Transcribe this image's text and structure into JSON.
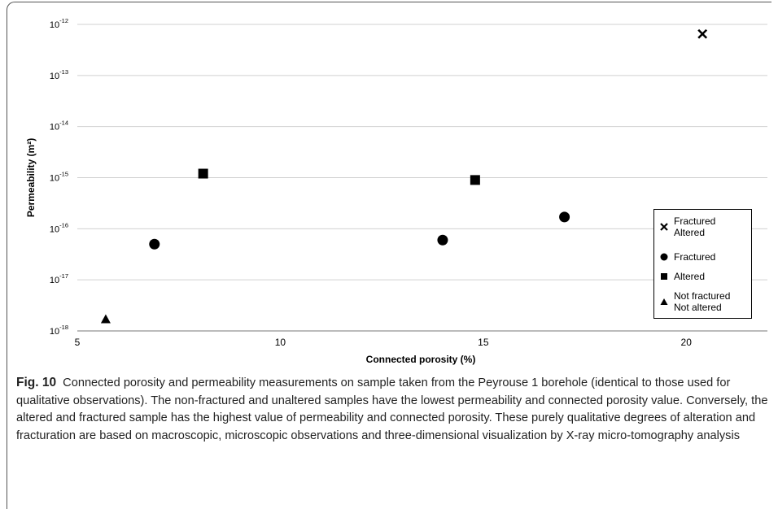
{
  "chart_data": {
    "type": "scatter",
    "xlabel": "Connected porosity (%)",
    "ylabel": "Permeability (m²)",
    "xlim": [
      5,
      22
    ],
    "ylim_log10": [
      -18,
      -12
    ],
    "y_scale": "log",
    "x_ticks": [
      "5",
      "10",
      "15",
      "20"
    ],
    "y_ticks": [
      {
        "base": "10",
        "exp": "-12"
      },
      {
        "base": "10",
        "exp": "-13"
      },
      {
        "base": "10",
        "exp": "-14"
      },
      {
        "base": "10",
        "exp": "-15"
      },
      {
        "base": "10",
        "exp": "-16"
      },
      {
        "base": "10",
        "exp": "-17"
      },
      {
        "base": "10",
        "exp": "-18"
      }
    ],
    "grid": "horizontal",
    "legend_placement": "right",
    "series": [
      {
        "name": "Fractured Altered",
        "lines": [
          "Fractured",
          "Altered"
        ],
        "marker": "x",
        "points": [
          {
            "x": 20.4,
            "y": 6.5e-13
          }
        ]
      },
      {
        "name": "Fractured",
        "lines": [
          "Fractured"
        ],
        "marker": "circle",
        "points": [
          {
            "x": 6.9,
            "y": 5e-17
          },
          {
            "x": 14.0,
            "y": 6e-17
          },
          {
            "x": 17.0,
            "y": 1.7e-16
          }
        ]
      },
      {
        "name": "Altered",
        "lines": [
          "Altered"
        ],
        "marker": "square",
        "points": [
          {
            "x": 8.1,
            "y": 1.2e-15
          },
          {
            "x": 14.8,
            "y": 9e-16
          }
        ]
      },
      {
        "name": "Not fractured Not altered",
        "lines": [
          "Not fractured",
          "Not altered"
        ],
        "marker": "triangle",
        "points": [
          {
            "x": 5.7,
            "y": 1.7e-18
          }
        ]
      }
    ]
  },
  "caption": {
    "label": "Fig. 10",
    "text": "Connected porosity and permeability measurements on sample taken from the Peyrouse 1 borehole (identical to those used for qualitative observations). The non-fractured and unaltered samples have the lowest permeability and connected porosity value. Conversely, the altered and fractured sample has the highest value of permeability and connected porosity. These purely qualitative degrees of alteration and fracturation are based on macroscopic, microscopic observations and three-dimensional visualization by X-ray micro-tomography analysis"
  }
}
